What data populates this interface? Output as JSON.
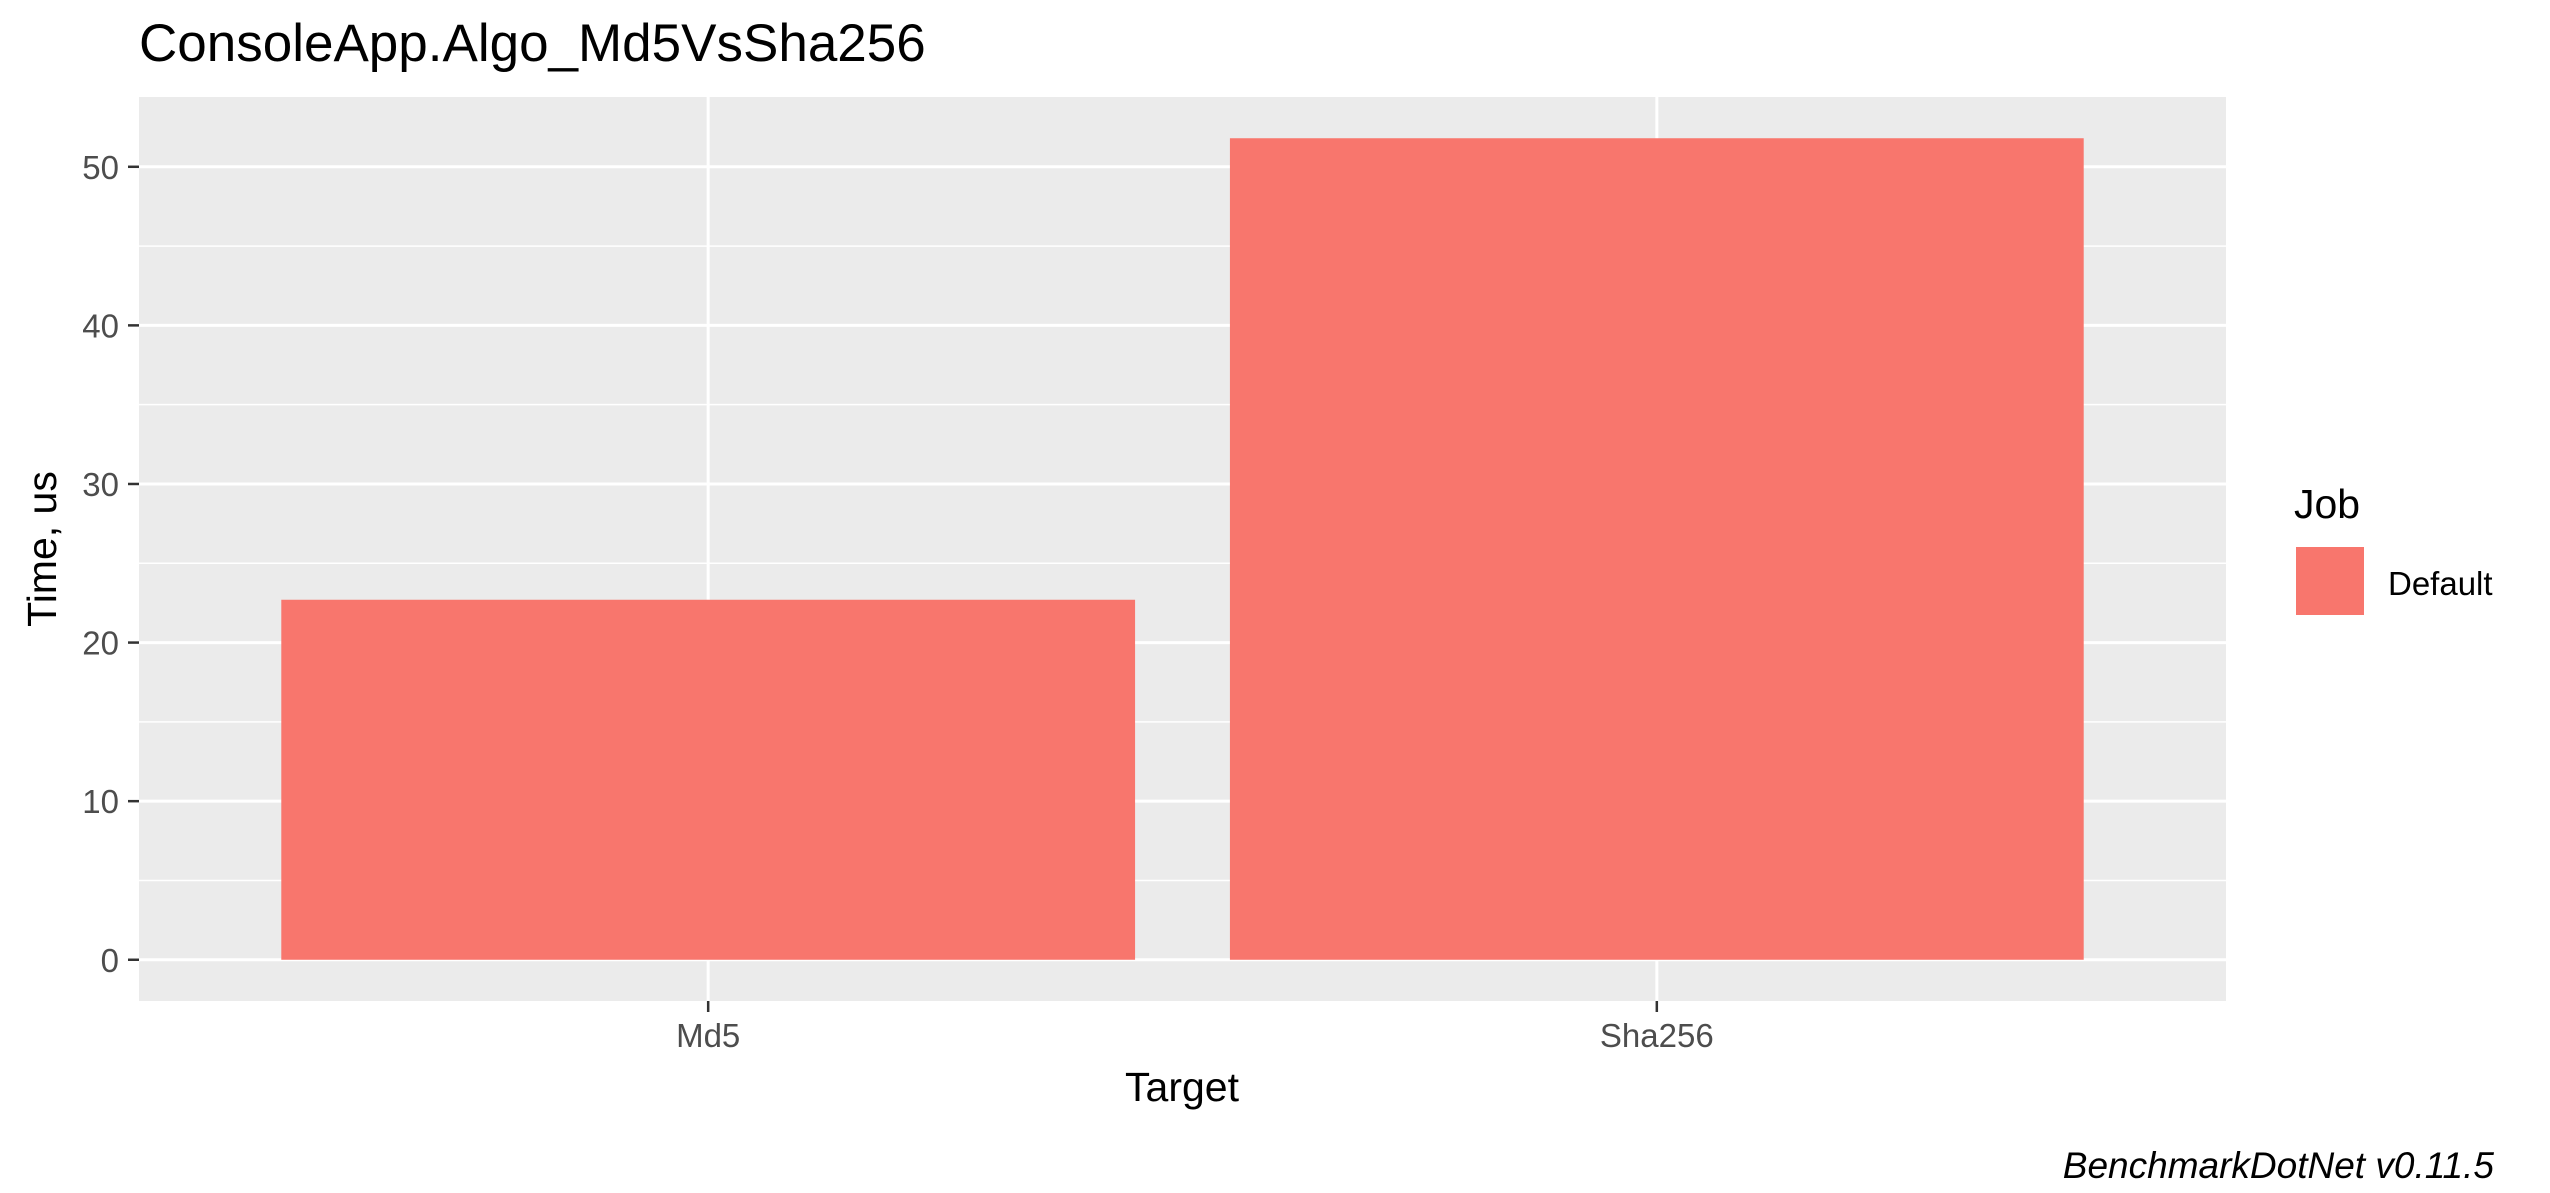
{
  "chart_data": {
    "type": "bar",
    "title": "ConsoleApp.Algo_Md5VsSha256",
    "xlabel": "Target",
    "ylabel": "Time, us",
    "categories": [
      "Md5",
      "Sha256"
    ],
    "series": [
      {
        "name": "Default",
        "values": [
          22.7,
          51.8
        ],
        "color": "#F8766D"
      }
    ],
    "ylim": [
      -2.6,
      54.4
    ],
    "yticks": [
      0,
      10,
      20,
      30,
      40,
      50
    ],
    "grid": true,
    "legend": {
      "title": "Job",
      "position": "right",
      "entries": [
        "Default"
      ]
    },
    "caption": "BenchmarkDotNet v0.11.5",
    "colors": {
      "panel_background": "#EBEBEB",
      "grid": "#FFFFFF",
      "bar": "#F8766D"
    }
  }
}
